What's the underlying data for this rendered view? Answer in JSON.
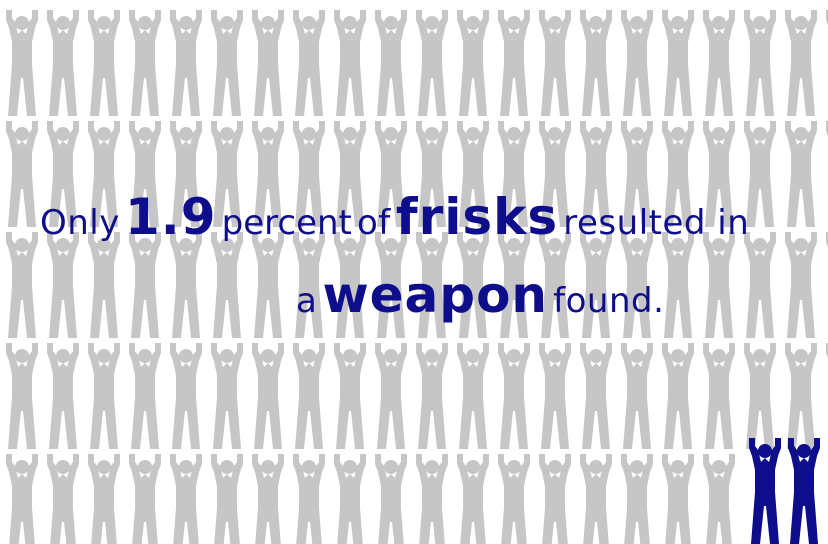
{
  "headline": {
    "line1": {
      "only": "Only",
      "number": "1.9",
      "percent": "percent",
      "of": "of",
      "frisks": "frisks",
      "resulted_in": "resulted in"
    },
    "line2": {
      "a": "a",
      "weapon": "weapon",
      "found": "found."
    }
  },
  "figures": {
    "icon": "raised-hands-person-icon",
    "colors": {
      "background_figure": "#c6c6c6",
      "highlight_figure": "#0e0e8c",
      "text": "#0e0e8c"
    }
  }
}
